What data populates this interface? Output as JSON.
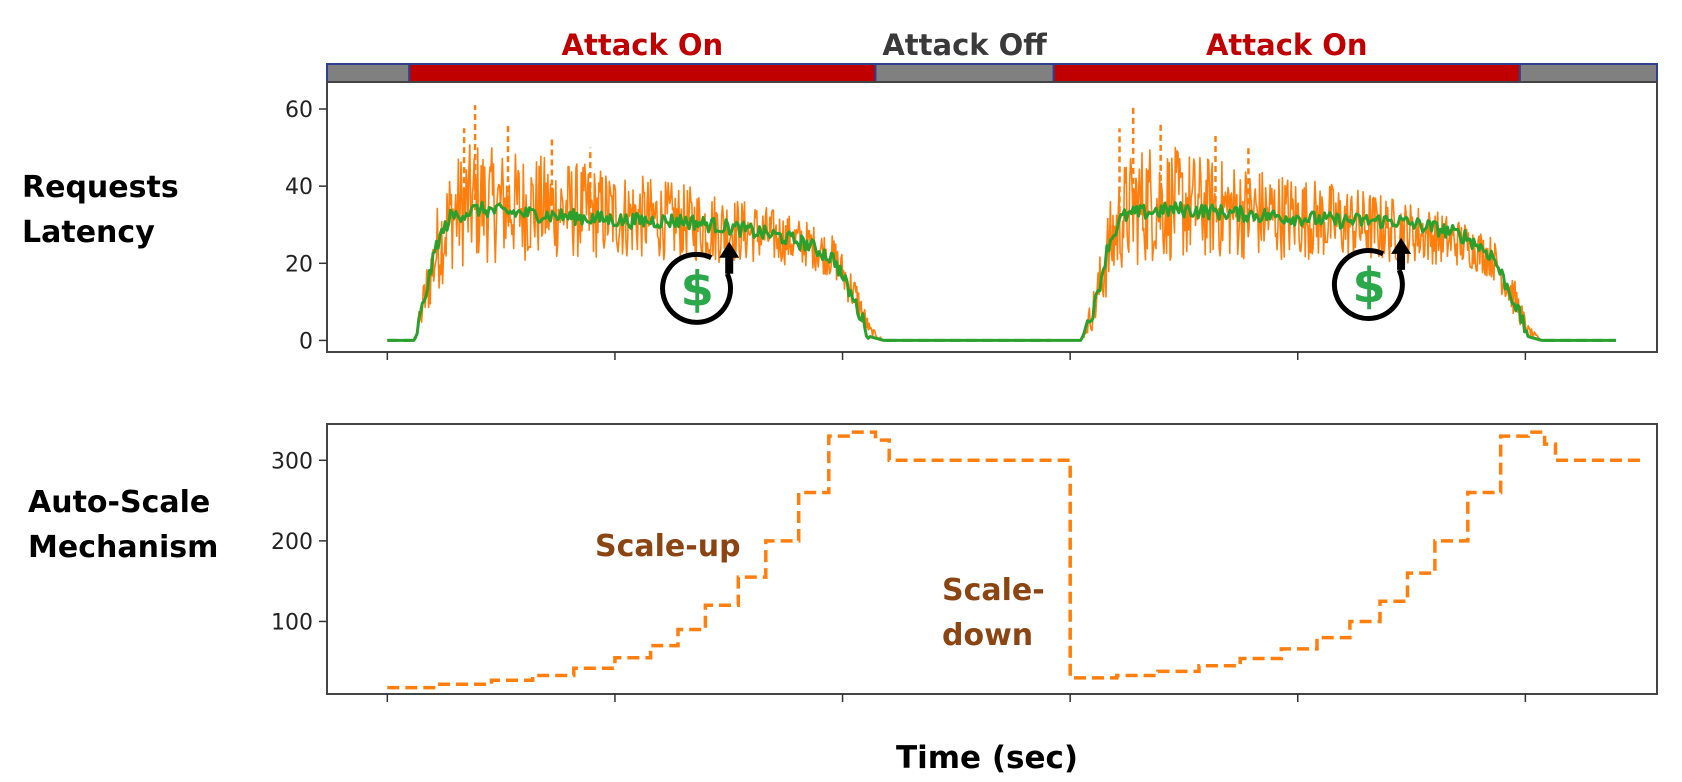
{
  "chart_data": [
    {
      "type": "line",
      "row_label": [
        "Requests",
        "Latency"
      ],
      "phases": [
        {
          "label": "",
          "state": "off",
          "x_range": [
            0,
            3
          ]
        },
        {
          "label": "Attack On",
          "state": "on",
          "x_range": [
            3,
            20
          ]
        },
        {
          "label": "Attack Off",
          "state": "off",
          "x_range": [
            20,
            26.5
          ]
        },
        {
          "label": "Attack On",
          "state": "on",
          "x_range": [
            26.5,
            43.5
          ]
        },
        {
          "label": "",
          "state": "off",
          "x_range": [
            43.5,
            48.5
          ]
        }
      ],
      "xlim": [
        0,
        48.5
      ],
      "ylim": [
        -3,
        67
      ],
      "yticks": [
        0,
        20,
        40,
        60
      ],
      "xticks": [
        2.2,
        10.5,
        18.8,
        27.1,
        35.4,
        43.7
      ],
      "series": [
        {
          "role": "spread",
          "color": "#ff7f0e",
          "x": [
            2.2,
            3.2,
            3.5,
            4.0,
            4.5,
            5.0,
            5.5,
            6,
            8,
            10,
            12,
            14,
            16,
            17.5,
            18.5,
            19.3,
            19.8,
            20.3,
            21,
            26.5,
            27.5,
            28.0,
            28.5,
            29,
            29.5,
            30,
            32,
            34,
            36,
            38,
            40,
            41.5,
            42.5,
            43.3,
            43.8,
            44.3,
            45,
            47
          ],
          "low": [
            0,
            0,
            3,
            12,
            18,
            19,
            20,
            20,
            21,
            21,
            21,
            20,
            20,
            19,
            16,
            6,
            1,
            0,
            0,
            0,
            0,
            3,
            12,
            18,
            19,
            20,
            21,
            21,
            21,
            20,
            20,
            19,
            16,
            6,
            1,
            0,
            0,
            0
          ],
          "high": [
            0,
            0,
            15,
            35,
            46,
            50,
            52,
            50,
            48,
            45,
            42,
            39,
            35,
            31,
            27,
            16,
            4,
            0,
            0,
            0,
            0,
            15,
            35,
            46,
            50,
            52,
            48,
            45,
            42,
            39,
            35,
            31,
            27,
            16,
            4,
            0,
            0,
            0
          ],
          "peaks": [
            {
              "x": 5.4,
              "y": 61
            },
            {
              "x": 6.6,
              "y": 56
            },
            {
              "x": 5.0,
              "y": 55
            },
            {
              "x": 8.2,
              "y": 53
            },
            {
              "x": 9.6,
              "y": 50
            },
            {
              "x": 29.4,
              "y": 61
            },
            {
              "x": 30.4,
              "y": 56
            },
            {
              "x": 28.9,
              "y": 55
            },
            {
              "x": 32.4,
              "y": 53
            },
            {
              "x": 33.6,
              "y": 50
            }
          ]
        },
        {
          "role": "mean",
          "color": "#2ca02c",
          "x": [
            2.2,
            3.2,
            3.5,
            4.0,
            4.5,
            5.0,
            5.5,
            7,
            9,
            11,
            13,
            15,
            16.5,
            17.5,
            18.5,
            19.3,
            19.8,
            20.3,
            21,
            26.5,
            27.5,
            28.0,
            28.5,
            29,
            29.5,
            31,
            33,
            35,
            37,
            39,
            40.5,
            41.5,
            42.5,
            43.3,
            43.8,
            44.3,
            45,
            47
          ],
          "y": [
            0,
            0,
            9,
            25,
            32,
            33,
            34,
            33,
            32,
            31,
            31,
            29,
            27,
            25,
            21,
            9,
            1,
            0,
            0,
            0,
            0,
            9,
            25,
            32,
            33,
            34,
            33,
            32,
            31,
            31,
            29,
            27,
            22,
            10,
            1,
            0,
            0,
            0
          ]
        }
      ],
      "cost_icon": "dollar-cost-increase-icon",
      "cost_icon_glyph": "$",
      "cost_icons_at": [
        {
          "x": 13.5,
          "y": 9
        },
        {
          "x": 38.0,
          "y": 10
        }
      ]
    },
    {
      "type": "line",
      "row_label": [
        "Auto-Scale",
        "Mechanism"
      ],
      "xlim": [
        0,
        48.5
      ],
      "ylim": [
        10,
        345
      ],
      "yticks": [
        100,
        200,
        300
      ],
      "xticks": [
        2.2,
        10.5,
        18.8,
        27.1,
        35.4,
        43.7
      ],
      "xlabel": "Time (sec)",
      "series": [
        {
          "role": "instances",
          "color": "#ff7f0e",
          "style": "dashed-step",
          "x": [
            2.2,
            4.0,
            6.0,
            7.5,
            9.0,
            10.5,
            11.8,
            12.8,
            13.8,
            15.0,
            16.0,
            17.2,
            18.3,
            19.2,
            20.0,
            20.5,
            27.1,
            27.1,
            28.8,
            30.3,
            31.8,
            33.3,
            34.8,
            36.1,
            37.3,
            38.4,
            39.4,
            40.4,
            41.6,
            42.8,
            43.8,
            44.4,
            44.8,
            48.0
          ],
          "y": [
            18,
            22,
            27,
            33,
            42,
            55,
            70,
            90,
            120,
            155,
            200,
            260,
            330,
            335,
            325,
            300,
            300,
            30,
            33,
            38,
            45,
            54,
            66,
            80,
            100,
            125,
            160,
            200,
            260,
            330,
            335,
            320,
            300,
            300
          ]
        }
      ],
      "annotations": [
        {
          "text": "Scale-up",
          "color": "#8b4513"
        },
        {
          "text": "Scale-",
          "color": "#8b4513"
        },
        {
          "text": "down",
          "color": "#8b4513"
        }
      ]
    }
  ],
  "colors": {
    "attack_on": "#c00000",
    "attack_off": "#808080",
    "phase_off_text": "#3a3a3a",
    "phase_border": "#2f3f8f"
  }
}
